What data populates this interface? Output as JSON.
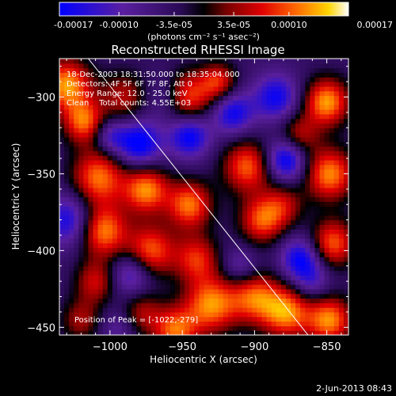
{
  "colors": {
    "background": "#000000",
    "foreground": "#ffffff",
    "colormap": [
      "#0000ff",
      "#5a1fa0",
      "#2a0a55",
      "#000000",
      "#7a0000",
      "#e00000",
      "#ff6a00",
      "#ffd400",
      "#ffffff"
    ]
  },
  "chart_data": [
    {
      "type": "heatmap",
      "title": "Reconstructed RHESSI Image",
      "xlabel": "Heliocentric X (arcsec)",
      "ylabel": "Heliocentric Y (arcsec)",
      "xlim": [
        -1035,
        -835
      ],
      "ylim": [
        -455,
        -275
      ],
      "xticks": [
        -1000,
        -950,
        -900,
        -850
      ],
      "yticks": [
        -450,
        -400,
        -350,
        -300
      ],
      "xtick_labels": [
        "−1000",
        "−950",
        "−900",
        "−850"
      ],
      "ytick_labels": [
        "−450",
        "−400",
        "−350",
        "−300"
      ],
      "annotations": [
        "18-Dec-2003 18:31:50.000 to 18:35:04.000",
        "Detectors: 4F 5F 6F 7F 8F, Att 0",
        "Energy Range: 12.0 - 25.0 keV",
        "Clean    Total counts: 4.55E+03"
      ],
      "peak_label": "Position of Peak = [-1022,-279]",
      "peak_position": [
        -1022,
        -279
      ],
      "limb_line": [
        [
          -1015,
          -275
        ],
        [
          -863,
          -455
        ]
      ],
      "blobs": [
        [
          -1030,
          -292,
          1.0,
          12
        ],
        [
          -1018,
          -316,
          0.85,
          10
        ],
        [
          -1028,
          -380,
          -0.7,
          12
        ],
        [
          -1008,
          -352,
          0.9,
          13
        ],
        [
          -1005,
          -387,
          0.95,
          12
        ],
        [
          -1010,
          -420,
          0.6,
          10
        ],
        [
          -1020,
          -445,
          0.5,
          10
        ],
        [
          -990,
          -300,
          0.55,
          12
        ],
        [
          -980,
          -330,
          -0.85,
          11
        ],
        [
          -975,
          -360,
          0.95,
          11
        ],
        [
          -972,
          -400,
          0.85,
          12
        ],
        [
          -978,
          -440,
          0.5,
          10
        ],
        [
          -985,
          -415,
          -0.6,
          10
        ],
        [
          -960,
          -300,
          -0.5,
          11
        ],
        [
          -948,
          -300,
          0.95,
          12
        ],
        [
          -945,
          -325,
          -0.8,
          10
        ],
        [
          -945,
          -370,
          0.9,
          11
        ],
        [
          -940,
          -405,
          0.7,
          11
        ],
        [
          -930,
          -435,
          0.95,
          13
        ],
        [
          -955,
          -452,
          0.85,
          11
        ],
        [
          -925,
          -290,
          0.7,
          9
        ],
        [
          -915,
          -310,
          -0.7,
          10
        ],
        [
          -905,
          -345,
          0.85,
          12
        ],
        [
          -895,
          -380,
          0.8,
          11
        ],
        [
          -900,
          -430,
          0.8,
          12
        ],
        [
          -910,
          -410,
          -0.4,
          9
        ],
        [
          -885,
          -300,
          -0.7,
          11
        ],
        [
          -870,
          -325,
          0.6,
          10
        ],
        [
          -878,
          -340,
          -0.9,
          10
        ],
        [
          -880,
          -370,
          0.5,
          10
        ],
        [
          -868,
          -405,
          -0.75,
          10
        ],
        [
          -878,
          -440,
          0.95,
          12
        ],
        [
          -850,
          -303,
          1.0,
          11
        ],
        [
          -848,
          -350,
          0.95,
          12
        ],
        [
          -846,
          -395,
          0.85,
          11
        ],
        [
          -848,
          -445,
          0.95,
          11
        ],
        [
          -860,
          -420,
          -0.4,
          9
        ],
        [
          -995,
          -450,
          -0.3,
          9
        ],
        [
          -1000,
          -325,
          -0.5,
          8
        ]
      ]
    },
    {
      "type": "colorbar",
      "range": [
        -0.00017,
        0.00017
      ],
      "ticks": [
        -0.00017,
        -0.0001,
        -3.5e-05,
        3.5e-05,
        0.0001,
        0.00017
      ],
      "tick_labels": [
        "-0.00017",
        "-0.00010",
        "-3.5e-05",
        "3.5e-05",
        "0.00010",
        "0.00017"
      ],
      "unit_label": "(photons cm⁻² s⁻¹ asec⁻²)"
    }
  ],
  "footer": {
    "date": "2-Jun-2013 08:43"
  }
}
